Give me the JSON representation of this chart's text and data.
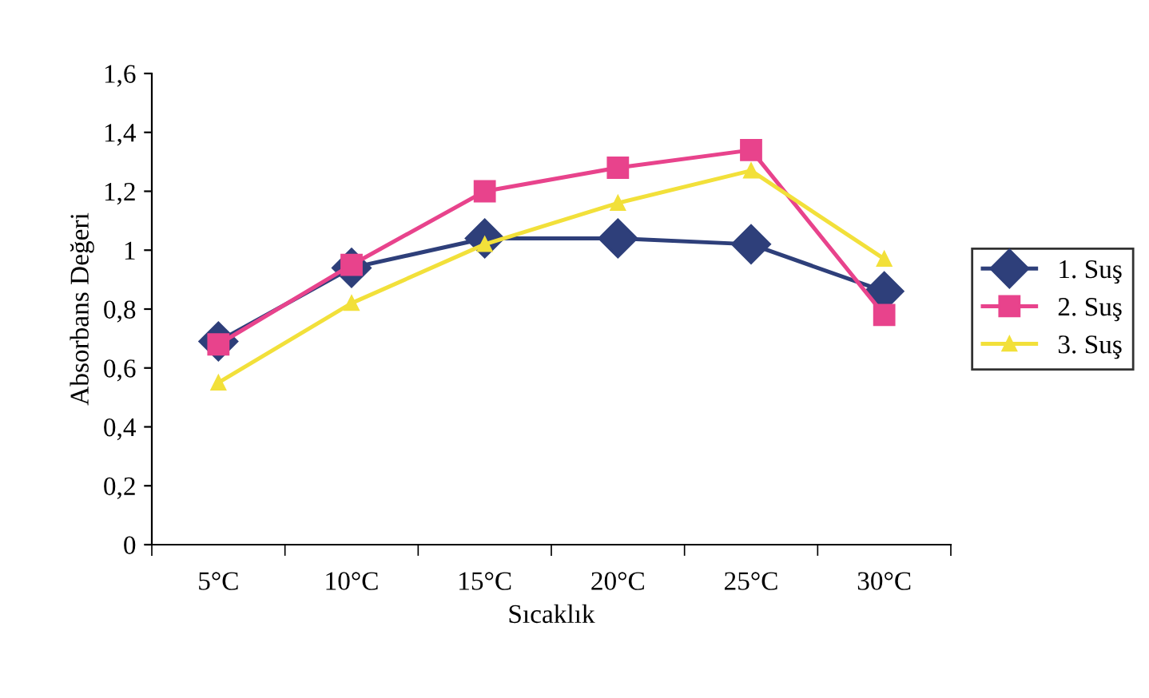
{
  "chart_data": {
    "type": "line",
    "xlabel": "Sıcaklık",
    "ylabel": "Absorbans Değeri",
    "categories": [
      "5°C",
      "10°C",
      "15°C",
      "20°C",
      "25°C",
      "30°C"
    ],
    "series": [
      {
        "name": "1. Suş",
        "color": "#2e3f7a",
        "marker": "diamond",
        "values": [
          0.69,
          0.94,
          1.04,
          1.04,
          1.02,
          0.86
        ]
      },
      {
        "name": "2. Suş",
        "color": "#e8438c",
        "marker": "square",
        "values": [
          0.68,
          0.95,
          1.2,
          1.28,
          1.34,
          0.78
        ]
      },
      {
        "name": "3. Suş",
        "color": "#f2e03a",
        "marker": "triangle",
        "values": [
          0.55,
          0.82,
          1.02,
          1.16,
          1.27,
          0.97
        ]
      }
    ],
    "ylim": [
      0,
      1.6
    ],
    "yticks": [
      0,
      {
        "value": 0.2,
        "label": "0,2"
      },
      {
        "value": 0.4,
        "label": "0,4"
      },
      {
        "value": 0.6,
        "label": "0,6"
      },
      {
        "value": 0.8,
        "label": "0,8"
      },
      1,
      {
        "value": 1.2,
        "label": "1,2"
      },
      {
        "value": 1.4,
        "label": "1,4"
      },
      {
        "value": 1.6,
        "label": "1,6"
      }
    ],
    "grid": false,
    "legend": "right",
    "line_style": "solid"
  }
}
